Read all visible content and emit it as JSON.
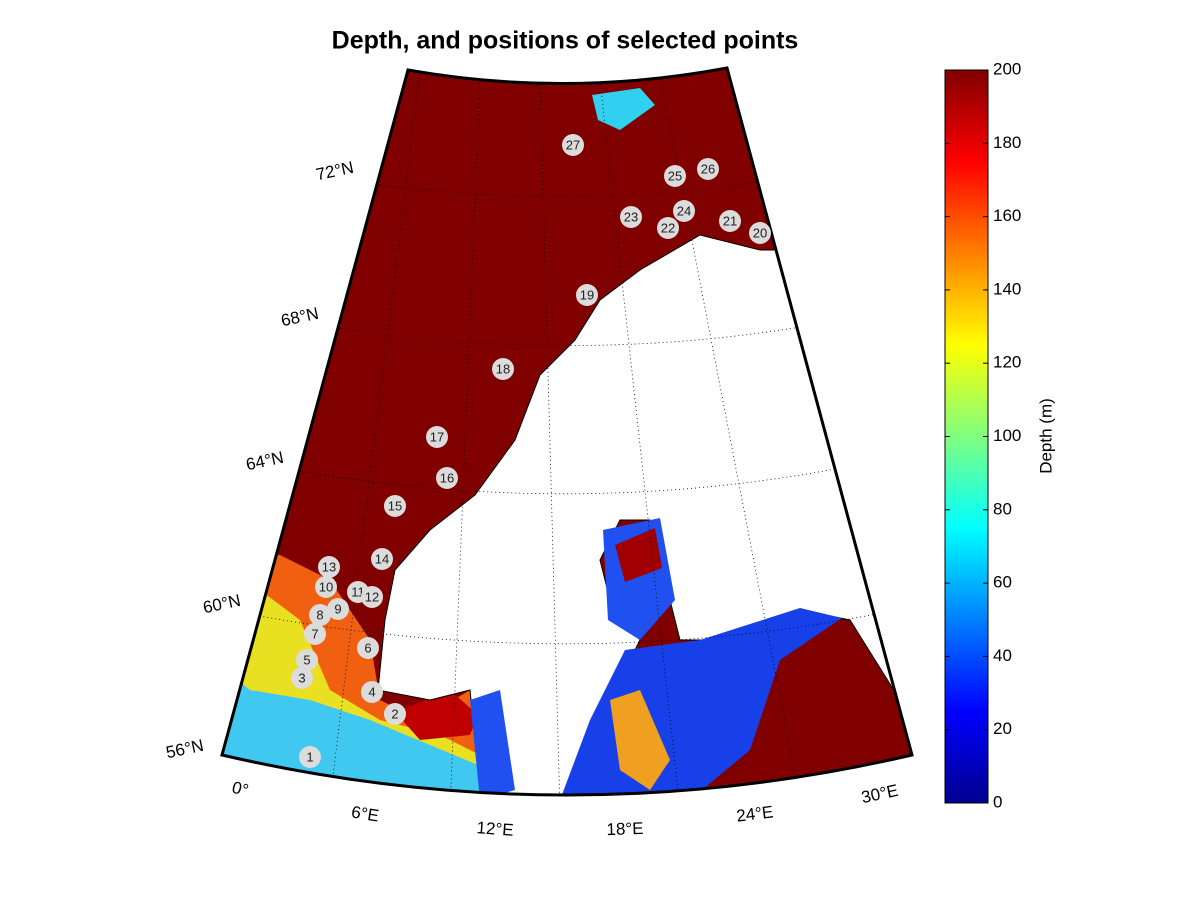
{
  "title": "Depth, and positions of selected points",
  "colorbar": {
    "label": "Depth (m)",
    "lim": [
      0,
      200
    ],
    "ticks": [
      0,
      20,
      40,
      60,
      80,
      100,
      120,
      140,
      160,
      180,
      200
    ]
  },
  "lat_labels": [
    "56°N",
    "60°N",
    "64°N",
    "68°N",
    "72°N"
  ],
  "lon_labels": [
    "0°",
    "6°E",
    "12°E",
    "18°E",
    "24°E",
    "30°E"
  ],
  "points": [
    "1",
    "2",
    "3",
    "4",
    "5",
    "6",
    "7",
    "8",
    "9",
    "10",
    "11",
    "12",
    "13",
    "14",
    "15",
    "16",
    "17",
    "18",
    "19",
    "20",
    "21",
    "22",
    "23",
    "24",
    "25",
    "26",
    "27"
  ]
}
